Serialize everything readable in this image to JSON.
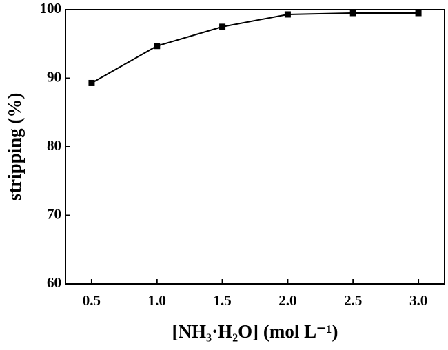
{
  "chart_data": {
    "type": "line",
    "x_label": "[NH₃·H₂O] (mol L⁻¹)",
    "y_label": "stripping (%)",
    "x": [
      0.5,
      1.0,
      1.5,
      2.0,
      2.5,
      3.0
    ],
    "series": [
      {
        "color": "#000000",
        "values": [
          89.3,
          94.7,
          97.5,
          99.3,
          99.5,
          99.5
        ]
      }
    ],
    "xlim": [
      0.3,
      3.2
    ],
    "xticks": [
      0.5,
      {
        "value": 1,
        "label": "1.0"
      },
      1.5,
      {
        "value": 2,
        "label": "2.0"
      },
      2.5,
      {
        "value": 3,
        "label": "3.0"
      }
    ],
    "ylim": [
      60,
      100
    ],
    "yticks": [
      60,
      70,
      80,
      90,
      100
    ],
    "grid": false
  }
}
